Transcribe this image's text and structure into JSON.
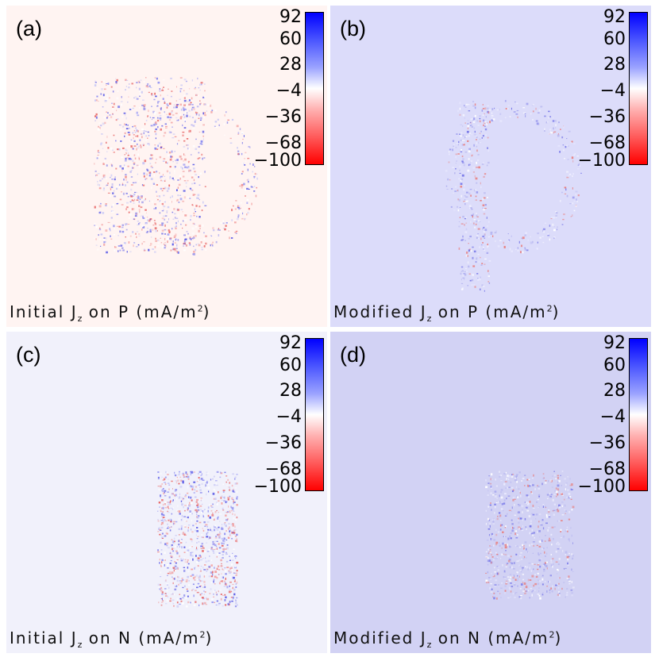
{
  "colorbar": {
    "ticks": [
      "92",
      "60",
      "28",
      "−4",
      "−36",
      "−68",
      "−100"
    ],
    "colors": {
      "top": "#0000ff",
      "mid": "#ffffff",
      "bottom": "#ff0000"
    }
  },
  "panels": [
    {
      "tag": "(a)",
      "caption_main": "Initial J",
      "caption_sub": "z",
      "caption_rest": " on P (mA/m",
      "caption_sup": "2",
      "caption_end": ")",
      "background": "#fff4f2"
    },
    {
      "tag": "(b)",
      "caption_main": "Modified J",
      "caption_sub": "z",
      "caption_rest": " on P (mA/m",
      "caption_sup": "2",
      "caption_end": ")",
      "background": "#dcdcfa"
    },
    {
      "tag": "(c)",
      "caption_main": "Initial J",
      "caption_sub": "z",
      "caption_rest": " on N (mA/m",
      "caption_sup": "2",
      "caption_end": ")",
      "background": "#f1f1fb"
    },
    {
      "tag": "(d)",
      "caption_main": "Modified J",
      "caption_sub": "z",
      "caption_rest": " on N (mA/m",
      "caption_sup": "2",
      "caption_end": ")",
      "background": "#d2d2f4"
    }
  ]
}
